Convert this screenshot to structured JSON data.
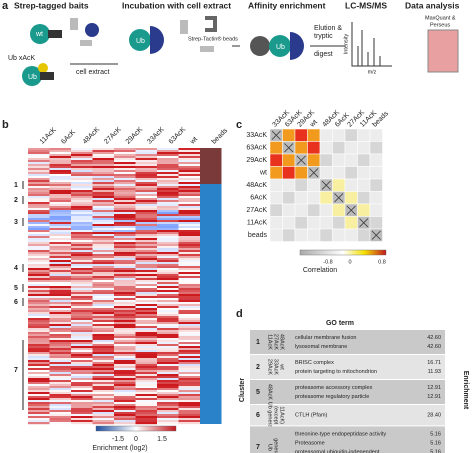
{
  "panel_a": {
    "label": "a",
    "steps": [
      "Strep-tagged baits",
      "Incubation with cell extract",
      "Affinity enrichment",
      "LC-MS/MS",
      "Data analysis"
    ],
    "wt": "wt",
    "ub_xack": "Ub xAcK",
    "ub": "Ub",
    "ub2": "Ub",
    "ub3": "Ub",
    "cell_extract": "cell extract",
    "beads": "Strep-Tactin® beads",
    "elution": "Elution &",
    "digest": "tryptic",
    "digest2": "digest",
    "intensity": "Intensity",
    "mz": "m/z",
    "software": "MaxQuant &",
    "software2": "Perseus"
  },
  "panel_b": {
    "label": "b",
    "columns": [
      "11AcK",
      "6AcK",
      "48AcK",
      "27AcK",
      "29AcK",
      "33AcK",
      "63AcK",
      "wt",
      "beads"
    ],
    "clusters": [
      "1",
      "2",
      "3",
      "4",
      "5",
      "6",
      "7"
    ],
    "colorbar_label": "Enrichment (log2)",
    "colorbar_ticks": [
      -1.5,
      0,
      1.5
    ]
  },
  "panel_c": {
    "label": "c",
    "labels": [
      "33AcK",
      "63AcK",
      "29AcK",
      "wt",
      "48AcK",
      "6AcK",
      "27AcK",
      "11AcK",
      "beads"
    ],
    "colorbar_label": "Correlation",
    "colorbar_ticks": [
      -0.8,
      0,
      0.8
    ]
  },
  "panel_d": {
    "label": "d",
    "header": "GO term",
    "cluster_header": "Cluster",
    "enrichment_header": "Enrichment",
    "rows": [
      {
        "cluster": "1",
        "bait": [
          "11AcK",
          "27AcK",
          "48AcK"
        ],
        "terms": [
          [
            "cellular membrane fusion",
            "42.60"
          ],
          [
            "lysosomal membrane",
            "42.60"
          ]
        ]
      },
      {
        "cluster": "2",
        "bait": [
          "29AcK",
          "33AcK",
          "wt"
        ],
        "terms": [
          [
            "BRISC complex",
            "16.71"
          ],
          [
            "protein targeting to mitochondrion",
            "11.93"
          ]
        ]
      },
      {
        "cluster": "5",
        "bait": [
          "48AcK"
        ],
        "terms": [
          [
            "proteasome accessory complex",
            "12.91"
          ],
          [
            "proteasome regulatory particle",
            "12.91"
          ]
        ]
      },
      {
        "cluster": "6",
        "bait": [
          "Ub general",
          "(except",
          "11AcK)"
        ],
        "terms": [
          [
            "CTLH (Pfam)",
            "28.40"
          ]
        ]
      },
      {
        "cluster": "7",
        "bait": [
          "Ub",
          "general"
        ],
        "terms": [
          [
            "threonine-type endopeptidase activity",
            "5.16"
          ],
          [
            "Proteasome",
            "5.16"
          ],
          [
            "proteasomal ubiquitin-independent",
            "5.16"
          ],
          [
            "protein catabolic process",
            null
          ]
        ]
      }
    ]
  }
}
